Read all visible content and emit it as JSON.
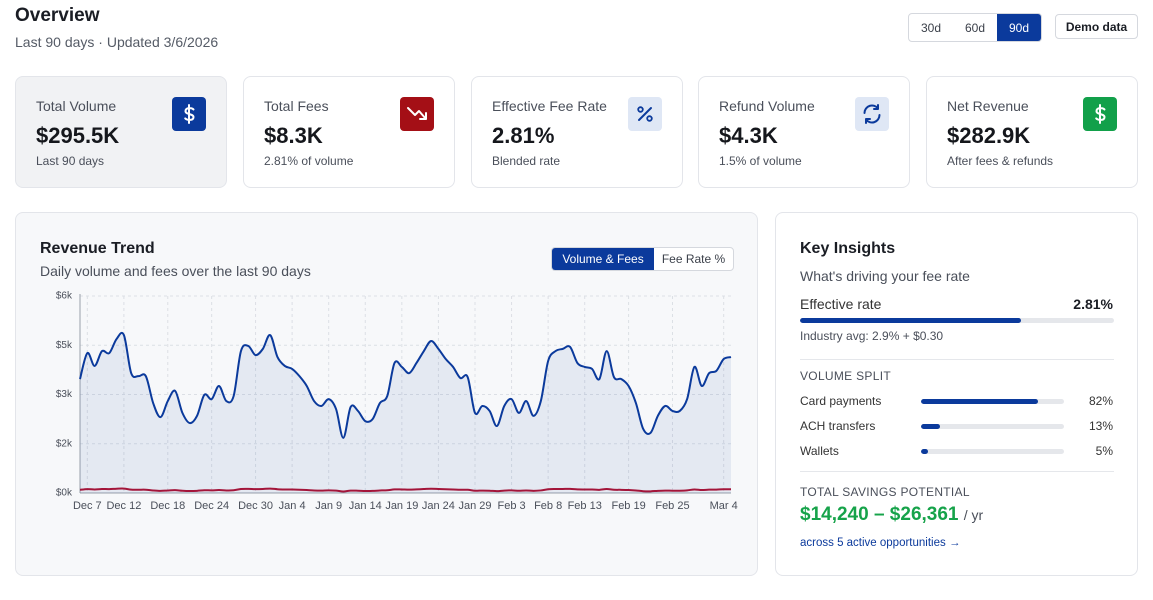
{
  "header": {
    "title": "Overview",
    "subtitle": "Last 90 days · Updated 3/6/2026",
    "ranges": [
      "30d",
      "60d",
      "90d"
    ],
    "active_range": "90d",
    "demo": "Demo data"
  },
  "kpis": [
    {
      "label": "Total Volume",
      "value": "$295.5K",
      "note": "Last 90 days"
    },
    {
      "label": "Total Fees",
      "value": "$8.3K",
      "note": "2.81% of volume"
    },
    {
      "label": "Effective Fee Rate",
      "value": "2.81%",
      "note": "Blended rate"
    },
    {
      "label": "Refund Volume",
      "value": "$4.3K",
      "note": "1.5% of volume"
    },
    {
      "label": "Net Revenue",
      "value": "$282.9K",
      "note": "After fees & refunds"
    }
  ],
  "chart_data": {
    "type": "line",
    "title": "Revenue Trend",
    "subtitle": "Daily volume and fees over the last 90 days",
    "toggles": [
      "Volume & Fees",
      "Fee Rate %"
    ],
    "active_toggle": "Volume & Fees",
    "categories": [
      null,
      "Dec 7",
      null,
      null,
      null,
      null,
      "Dec 12",
      null,
      null,
      null,
      null,
      null,
      "Dec 18",
      null,
      null,
      null,
      null,
      null,
      "Dec 24",
      null,
      null,
      null,
      null,
      null,
      "Dec 30",
      null,
      null,
      null,
      null,
      "Jan 4",
      null,
      null,
      null,
      null,
      "Jan 9",
      null,
      null,
      null,
      null,
      "Jan 14",
      null,
      null,
      null,
      null,
      "Jan 19",
      null,
      null,
      null,
      null,
      "Jan 24",
      null,
      null,
      null,
      null,
      "Jan 29",
      null,
      null,
      null,
      null,
      "Feb 3",
      null,
      null,
      null,
      null,
      "Feb 8",
      null,
      null,
      null,
      null,
      "Feb 13",
      null,
      null,
      null,
      null,
      null,
      "Feb 19",
      null,
      null,
      null,
      null,
      null,
      "Feb 25",
      null,
      null,
      null,
      null,
      null,
      null,
      "Mar 4",
      null
    ],
    "series": [
      {
        "color": "#0b3a9c",
        "area": true,
        "values": [
          3470,
          4260,
          3870,
          4320,
          4260,
          4690,
          4810,
          3650,
          3560,
          3560,
          2740,
          2310,
          2800,
          3110,
          2440,
          2130,
          2350,
          2990,
          2860,
          3260,
          2800,
          2950,
          4320,
          4480,
          4200,
          4390,
          4810,
          4140,
          3870,
          3780,
          3560,
          3260,
          2800,
          2650,
          2860,
          2560,
          1680,
          2620,
          2500,
          2190,
          2250,
          2740,
          2950,
          3960,
          3840,
          3650,
          3960,
          4320,
          4630,
          4390,
          4080,
          3840,
          3500,
          3530,
          2440,
          2650,
          2500,
          2040,
          2650,
          2860,
          2440,
          2800,
          2350,
          2800,
          4020,
          4320,
          4390,
          4450,
          3960,
          3840,
          3780,
          3470,
          4320,
          3530,
          3470,
          3260,
          2740,
          1950,
          1830,
          2350,
          2650,
          2500,
          2500,
          2860,
          3840,
          3260,
          3650,
          3720,
          4080,
          4140
        ]
      },
      {
        "color": "#a3153a",
        "area": false,
        "values": [
          97,
          119,
          108,
          121,
          119,
          131,
          135,
          102,
          100,
          100,
          77,
          65,
          78,
          87,
          68,
          60,
          66,
          84,
          80,
          91,
          78,
          83,
          121,
          125,
          118,
          123,
          135,
          116,
          108,
          106,
          100,
          91,
          78,
          74,
          80,
          72,
          47,
          73,
          70,
          61,
          63,
          77,
          83,
          111,
          108,
          102,
          111,
          121,
          130,
          123,
          114,
          108,
          98,
          99,
          68,
          74,
          70,
          57,
          74,
          80,
          68,
          78,
          66,
          78,
          113,
          121,
          123,
          125,
          111,
          108,
          106,
          97,
          121,
          99,
          97,
          91,
          77,
          55,
          51,
          66,
          74,
          70,
          70,
          80,
          108,
          91,
          102,
          104,
          114,
          116
        ]
      }
    ],
    "ylim": [
      0,
      6000
    ],
    "yticks": [
      {
        "value": 0,
        "label": "$0k"
      },
      {
        "value": 1500,
        "label": "$2k"
      },
      {
        "value": 3000,
        "label": "$3k"
      },
      {
        "value": 4500,
        "label": "$5k"
      },
      {
        "value": 6000,
        "label": "$6k"
      }
    ],
    "grid": true
  },
  "insights": {
    "title": "Key Insights",
    "subtitle": "What's driving your fee rate",
    "effective_rate": {
      "label": "Effective rate",
      "value": 2.81,
      "value_label": "2.81%",
      "xlim": [
        0,
        4
      ],
      "note": "Industry avg: 2.9% + $0.30",
      "color": "#0b3a9c"
    },
    "volume_split": {
      "title": "VOLUME SPLIT",
      "categories": [
        "Card payments",
        "ACH transfers",
        "Wallets"
      ],
      "values": [
        82,
        13,
        5
      ],
      "value_labels": [
        "82%",
        "13%",
        "5%"
      ],
      "xlim": [
        0,
        100
      ],
      "color": "#0b3a9c"
    },
    "savings": {
      "title": "TOTAL SAVINGS POTENTIAL",
      "range": "$14,240 – $26,361",
      "unit": "/ yr",
      "link": "across 5 active opportunities →"
    }
  }
}
